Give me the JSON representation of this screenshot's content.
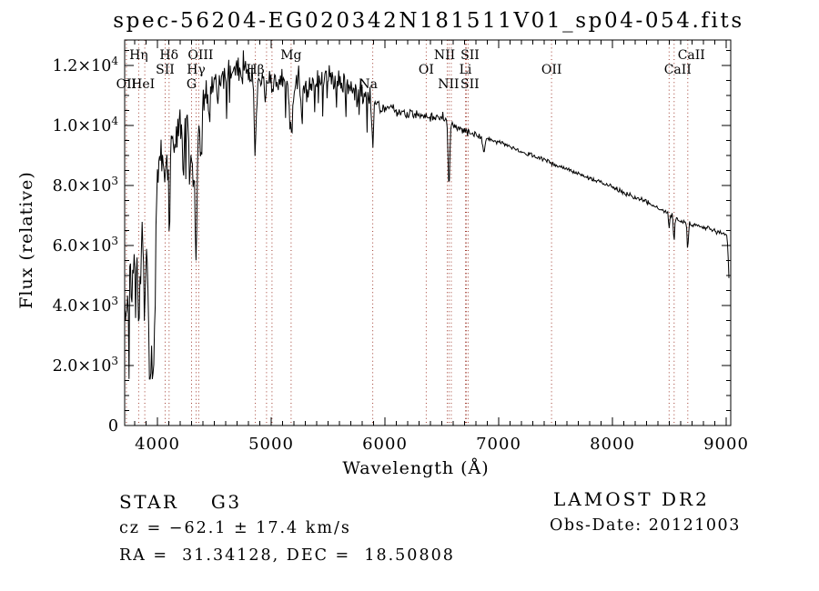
{
  "title": "spec-56204-EG020342N181511V01_sp04-054.fits",
  "footer": {
    "class_label": "STAR    G3",
    "survey": "LAMOST DR2",
    "cz": "cz = −62.1 ± 17.4 km/s",
    "obs_date": "Obs-Date: 20121003",
    "ra_dec": "RA =  31.34128, DEC =  18.50808"
  },
  "chart_data": {
    "type": "line",
    "title": "spec-56204-EG020342N181511V01_sp04-054.fits",
    "xlabel": "Wavelength (Å)",
    "ylabel": "Flux (relative)",
    "xlim": [
      3712,
      9040
    ],
    "ylim": [
      0,
      12850
    ],
    "grid": false,
    "x_major_ticks": [
      4000,
      5000,
      6000,
      7000,
      8000,
      9000
    ],
    "x_minor_step": 100,
    "y_major_ticks": [
      0,
      2000,
      4000,
      6000,
      8000,
      10000,
      12000
    ],
    "y_tick_labels": [
      "0",
      "2.0×10^3",
      "4.0×10^3",
      "6.0×10^3",
      "8.0×10^3",
      "1.0×10^4",
      "1.2×10^4"
    ],
    "y_minor_step": 500,
    "line_color": "#000000",
    "marker_line_color": "#a03c30",
    "seed": 20121003,
    "continuum": [
      [
        3712,
        4200
      ],
      [
        3760,
        5200
      ],
      [
        3800,
        5500
      ],
      [
        3850,
        5400
      ],
      [
        3900,
        6600
      ],
      [
        3950,
        7000
      ],
      [
        4000,
        8800
      ],
      [
        4050,
        9300
      ],
      [
        4100,
        9600
      ],
      [
        4150,
        9400
      ],
      [
        4200,
        10100
      ],
      [
        4250,
        10000
      ],
      [
        4300,
        10600
      ],
      [
        4360,
        10400
      ],
      [
        4420,
        11200
      ],
      [
        4500,
        11500
      ],
      [
        4600,
        11600
      ],
      [
        4700,
        11900
      ],
      [
        4800,
        11800
      ],
      [
        4900,
        11400
      ],
      [
        5000,
        11600
      ],
      [
        5100,
        11400
      ],
      [
        5200,
        11600
      ],
      [
        5300,
        11300
      ],
      [
        5400,
        11500
      ],
      [
        5500,
        11600
      ],
      [
        5600,
        11400
      ],
      [
        5700,
        11300
      ],
      [
        5800,
        11100
      ],
      [
        5900,
        10800
      ],
      [
        6000,
        10550
      ],
      [
        6100,
        10450
      ],
      [
        6200,
        10400
      ],
      [
        6300,
        10350
      ],
      [
        6400,
        10250
      ],
      [
        6500,
        10300
      ],
      [
        6600,
        10050
      ],
      [
        6700,
        9800
      ],
      [
        6800,
        9700
      ],
      [
        6900,
        9550
      ],
      [
        7000,
        9450
      ],
      [
        7100,
        9300
      ],
      [
        7200,
        9100
      ],
      [
        7300,
        9000
      ],
      [
        7400,
        8850
      ],
      [
        7500,
        8700
      ],
      [
        7600,
        8550
      ],
      [
        7700,
        8400
      ],
      [
        7800,
        8250
      ],
      [
        7900,
        8100
      ],
      [
        8000,
        7950
      ],
      [
        8100,
        7750
      ],
      [
        8200,
        7600
      ],
      [
        8300,
        7450
      ],
      [
        8400,
        7250
      ],
      [
        8500,
        7050
      ],
      [
        8600,
        6800
      ],
      [
        8700,
        6700
      ],
      [
        8800,
        6600
      ],
      [
        8900,
        6500
      ],
      [
        9000,
        6350
      ],
      [
        9026,
        6250
      ]
    ],
    "noise_sigma": [
      [
        3712,
        1400
      ],
      [
        3800,
        1300
      ],
      [
        3900,
        1150
      ],
      [
        4000,
        900
      ],
      [
        4100,
        800
      ],
      [
        4300,
        650
      ],
      [
        4500,
        560
      ],
      [
        5000,
        540
      ],
      [
        5500,
        500
      ],
      [
        5800,
        420
      ],
      [
        6000,
        230
      ],
      [
        6300,
        170
      ],
      [
        6600,
        140
      ],
      [
        7000,
        100
      ],
      [
        7500,
        85
      ],
      [
        8000,
        85
      ],
      [
        8600,
        90
      ],
      [
        9026,
        90
      ]
    ],
    "absorption_lines": [
      [
        3727,
        800,
        8
      ],
      [
        3750,
        1500,
        8
      ],
      [
        3835,
        2000,
        8
      ],
      [
        3889,
        2500,
        8
      ],
      [
        3933,
        5000,
        14
      ],
      [
        3968,
        5600,
        14
      ],
      [
        4068,
        1200,
        7
      ],
      [
        4102,
        2600,
        9
      ],
      [
        4227,
        1300,
        7
      ],
      [
        4305,
        2200,
        20
      ],
      [
        4340,
        4300,
        9
      ],
      [
        4383,
        1600,
        8
      ],
      [
        4455,
        1000,
        6
      ],
      [
        4531,
        900,
        6
      ],
      [
        4861,
        2300,
        9
      ],
      [
        4959,
        500,
        6
      ],
      [
        5007,
        500,
        6
      ],
      [
        5175,
        1700,
        16
      ],
      [
        5270,
        1000,
        8
      ],
      [
        5893,
        1500,
        7
      ],
      [
        6563,
        2100,
        8
      ],
      [
        6870,
        500,
        10
      ],
      [
        8498,
        500,
        5
      ],
      [
        8542,
        900,
        5
      ],
      [
        8662,
        950,
        5
      ],
      [
        9030,
        1700,
        9
      ]
    ],
    "markers": [
      {
        "wavelength": 3727,
        "label": "OII",
        "row": 3,
        "dx": 0
      },
      {
        "wavelength": 3835,
        "label": "Hη",
        "row": 1,
        "dx": 0
      },
      {
        "wavelength": 3889,
        "label": "HeI",
        "row": 3,
        "dx": -2
      },
      {
        "wavelength": 4068,
        "label": "SII",
        "row": 2,
        "dx": 0
      },
      {
        "wavelength": 4102,
        "label": "Hδ",
        "row": 1,
        "dx": 0
      },
      {
        "wavelength": 4300,
        "label": "G",
        "row": 3,
        "dx": 0
      },
      {
        "wavelength": 4340,
        "label": "Hγ",
        "row": 2,
        "dx": 0
      },
      {
        "wavelength": 4363,
        "label": "OIII",
        "row": 1,
        "dx": 2
      },
      {
        "wavelength": 4861,
        "label": "Hβ",
        "row": 2,
        "dx": 0
      },
      {
        "wavelength": 4959,
        "label": "",
        "row": 0,
        "dx": 0
      },
      {
        "wavelength": 5007,
        "label": "",
        "row": 0,
        "dx": 0
      },
      {
        "wavelength": 5175,
        "label": "Mg",
        "row": 1,
        "dx": 0
      },
      {
        "wavelength": 5893,
        "label": "Na",
        "row": 3,
        "dx": -5
      },
      {
        "wavelength": 6363,
        "label": "OI",
        "row": 2,
        "dx": 0
      },
      {
        "wavelength": 6548,
        "label": "NII",
        "row": 1,
        "dx": -3
      },
      {
        "wavelength": 6563,
        "label": "",
        "row": 0,
        "dx": 0
      },
      {
        "wavelength": 6583,
        "label": "NII",
        "row": 3,
        "dx": -3
      },
      {
        "wavelength": 6708,
        "label": "Li",
        "row": 2,
        "dx": 0
      },
      {
        "wavelength": 6716,
        "label": "SII",
        "row": 1,
        "dx": 4
      },
      {
        "wavelength": 6731,
        "label": "SII",
        "row": 3,
        "dx": 2
      },
      {
        "wavelength": 7465,
        "label": "OII",
        "row": 2,
        "dx": 0
      },
      {
        "wavelength": 8498,
        "label": "",
        "row": 0,
        "dx": 0
      },
      {
        "wavelength": 8542,
        "label": "CaII",
        "row": 2,
        "dx": 4
      },
      {
        "wavelength": 8662,
        "label": "CaII",
        "row": 1,
        "dx": 4
      }
    ]
  }
}
